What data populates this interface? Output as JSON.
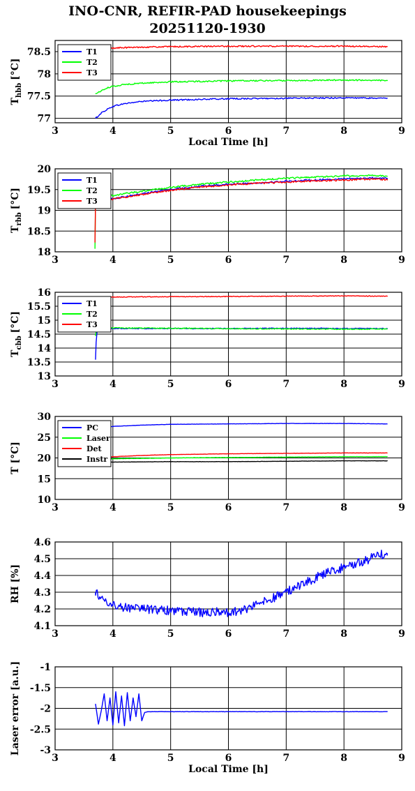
{
  "header": {
    "title_line1": "INO-CNR, REFIR-PAD housekeepings",
    "title_line2": "20251120-1930"
  },
  "chart_data": [
    {
      "type": "line",
      "ylabel": "T",
      "ylabel_sub": "hbb",
      "ylabel_unit": "[°C]",
      "xlabel": "Local Time [h]",
      "xlim": [
        3,
        9
      ],
      "ylim": [
        76.9,
        78.75
      ],
      "xticks": [
        3,
        4,
        5,
        6,
        7,
        8,
        9
      ],
      "yticks": [
        77,
        77.5,
        78,
        78.5
      ],
      "ytick_labels": [
        "77",
        "77.5",
        "78",
        "78.5"
      ],
      "grid": true,
      "legend_position": "top-left",
      "series": [
        {
          "name": "T1",
          "color": "#0000ff",
          "noise": 0.015,
          "points": [
            [
              3.7,
              77.0
            ],
            [
              3.8,
              77.12
            ],
            [
              3.9,
              77.2
            ],
            [
              4.0,
              77.27
            ],
            [
              4.2,
              77.33
            ],
            [
              4.5,
              77.38
            ],
            [
              5.0,
              77.41
            ],
            [
              6.0,
              77.44
            ],
            [
              7.0,
              77.45
            ],
            [
              8.0,
              77.46
            ],
            [
              8.75,
              77.45
            ]
          ]
        },
        {
          "name": "T2",
          "color": "#00ff00",
          "noise": 0.015,
          "points": [
            [
              3.7,
              77.55
            ],
            [
              3.8,
              77.62
            ],
            [
              3.9,
              77.68
            ],
            [
              4.0,
              77.72
            ],
            [
              4.2,
              77.76
            ],
            [
              4.5,
              77.79
            ],
            [
              5.0,
              77.82
            ],
            [
              6.0,
              77.84
            ],
            [
              7.0,
              77.85
            ],
            [
              8.0,
              77.86
            ],
            [
              8.75,
              77.85
            ]
          ]
        },
        {
          "name": "T3",
          "color": "#ff0000",
          "noise": 0.015,
          "points": [
            [
              3.7,
              78.47
            ],
            [
              3.8,
              78.52
            ],
            [
              3.9,
              78.56
            ],
            [
              4.0,
              78.58
            ],
            [
              4.5,
              78.6
            ],
            [
              5.0,
              78.61
            ],
            [
              6.0,
              78.62
            ],
            [
              7.0,
              78.62
            ],
            [
              8.0,
              78.62
            ],
            [
              8.75,
              78.61
            ]
          ]
        }
      ]
    },
    {
      "type": "line",
      "ylabel": "T",
      "ylabel_sub": "rbb",
      "ylabel_unit": "[°C]",
      "xlabel": "",
      "xlim": [
        3,
        9
      ],
      "ylim": [
        18,
        20
      ],
      "xticks": [
        3,
        4,
        5,
        6,
        7,
        8,
        9
      ],
      "yticks": [
        18,
        18.5,
        19,
        19.5,
        20
      ],
      "ytick_labels": [
        "18",
        "18.5",
        "19",
        "19.5",
        "20"
      ],
      "grid": true,
      "legend_position": "top-left",
      "series": [
        {
          "name": "T1",
          "color": "#0000ff",
          "noise": 0.02,
          "points": [
            [
              3.7,
              19.2
            ],
            [
              3.72,
              19.22
            ],
            [
              4.0,
              19.28
            ],
            [
              4.5,
              19.4
            ],
            [
              5.0,
              19.5
            ],
            [
              5.5,
              19.58
            ],
            [
              6.0,
              19.63
            ],
            [
              6.5,
              19.66
            ],
            [
              7.0,
              19.7
            ],
            [
              7.5,
              19.73
            ],
            [
              8.0,
              19.76
            ],
            [
              8.5,
              19.78
            ],
            [
              8.75,
              19.77
            ]
          ]
        },
        {
          "name": "T2",
          "color": "#00ff00",
          "noise": 0.02,
          "points": [
            [
              3.69,
              18.1
            ],
            [
              3.7,
              19.3
            ],
            [
              3.73,
              19.33
            ],
            [
              4.0,
              19.36
            ],
            [
              4.5,
              19.46
            ],
            [
              5.0,
              19.55
            ],
            [
              5.5,
              19.63
            ],
            [
              6.0,
              19.68
            ],
            [
              6.5,
              19.73
            ],
            [
              7.0,
              19.77
            ],
            [
              7.5,
              19.8
            ],
            [
              8.0,
              19.83
            ],
            [
              8.5,
              19.84
            ],
            [
              8.75,
              19.82
            ]
          ]
        },
        {
          "name": "T3",
          "color": "#ff0000",
          "noise": 0.02,
          "points": [
            [
              3.69,
              18.25
            ],
            [
              3.7,
              19.2
            ],
            [
              3.73,
              19.22
            ],
            [
              4.0,
              19.27
            ],
            [
              4.5,
              19.38
            ],
            [
              5.0,
              19.48
            ],
            [
              5.5,
              19.56
            ],
            [
              6.0,
              19.61
            ],
            [
              6.5,
              19.65
            ],
            [
              7.0,
              19.68
            ],
            [
              7.5,
              19.71
            ],
            [
              8.0,
              19.73
            ],
            [
              8.5,
              19.75
            ],
            [
              8.75,
              19.74
            ]
          ]
        }
      ]
    },
    {
      "type": "line",
      "ylabel": "T",
      "ylabel_sub": "cbb",
      "ylabel_unit": "[°C]",
      "xlabel": "",
      "xlim": [
        3,
        9
      ],
      "ylim": [
        13,
        16
      ],
      "xticks": [
        3,
        4,
        5,
        6,
        7,
        8,
        9
      ],
      "yticks": [
        13,
        13.5,
        14,
        14.5,
        15,
        15.5,
        16
      ],
      "ytick_labels": [
        "13",
        "13.5",
        "14",
        "14.5",
        "15",
        "15.5",
        "16"
      ],
      "grid": true,
      "legend_position": "top-left",
      "series": [
        {
          "name": "T1",
          "color": "#0000ff",
          "noise": 0.015,
          "points": [
            [
              3.7,
              13.6
            ],
            [
              3.71,
              14.2
            ],
            [
              3.73,
              14.68
            ],
            [
              4.0,
              14.7
            ],
            [
              5.0,
              14.7
            ],
            [
              6.0,
              14.7
            ],
            [
              7.0,
              14.71
            ],
            [
              8.0,
              14.7
            ],
            [
              8.75,
              14.7
            ]
          ]
        },
        {
          "name": "T2",
          "color": "#00ff00",
          "noise": 0.018,
          "points": [
            [
              3.7,
              14.45
            ],
            [
              3.72,
              14.7
            ],
            [
              4.0,
              14.72
            ],
            [
              5.0,
              14.71
            ],
            [
              6.0,
              14.7
            ],
            [
              7.0,
              14.69
            ],
            [
              8.0,
              14.68
            ],
            [
              8.75,
              14.68
            ]
          ]
        },
        {
          "name": "T3",
          "color": "#ff0000",
          "noise": 0.012,
          "points": [
            [
              3.7,
              15.83
            ],
            [
              4.0,
              15.83
            ],
            [
              5.0,
              15.84
            ],
            [
              6.0,
              15.85
            ],
            [
              7.0,
              15.86
            ],
            [
              8.0,
              15.87
            ],
            [
              8.75,
              15.86
            ]
          ]
        }
      ]
    },
    {
      "type": "line",
      "ylabel": "T [°C]",
      "ylabel_sub": "",
      "ylabel_unit": "",
      "xlabel": "",
      "xlim": [
        3,
        9
      ],
      "ylim": [
        10,
        30
      ],
      "xticks": [
        3,
        4,
        5,
        6,
        7,
        8,
        9
      ],
      "yticks": [
        10,
        15,
        20,
        25,
        30
      ],
      "ytick_labels": [
        "10",
        "15",
        "20",
        "25",
        "30"
      ],
      "grid": true,
      "legend_position": "top-left",
      "series": [
        {
          "name": "PC",
          "color": "#0000ff",
          "noise": 0.03,
          "points": [
            [
              3.7,
              26.8
            ],
            [
              3.8,
              27.2
            ],
            [
              4.0,
              27.6
            ],
            [
              4.5,
              27.9
            ],
            [
              5.0,
              28.1
            ],
            [
              6.0,
              28.2
            ],
            [
              7.0,
              28.3
            ],
            [
              8.0,
              28.3
            ],
            [
              8.75,
              28.2
            ]
          ]
        },
        {
          "name": "Laser",
          "color": "#00ff00",
          "noise": 0.03,
          "points": [
            [
              3.7,
              19.6
            ],
            [
              4.0,
              19.8
            ],
            [
              5.0,
              20.0
            ],
            [
              6.0,
              20.1
            ],
            [
              7.0,
              20.2
            ],
            [
              8.0,
              20.3
            ],
            [
              8.75,
              20.3
            ]
          ]
        },
        {
          "name": "Det",
          "color": "#ff0000",
          "noise": 0.03,
          "points": [
            [
              3.7,
              20.0
            ],
            [
              4.0,
              20.3
            ],
            [
              4.5,
              20.6
            ],
            [
              5.0,
              20.8
            ],
            [
              6.0,
              21.0
            ],
            [
              7.0,
              21.1
            ],
            [
              8.0,
              21.2
            ],
            [
              8.75,
              21.2
            ]
          ]
        },
        {
          "name": "Instr",
          "color": "#000000",
          "noise": 0.03,
          "points": [
            [
              3.7,
              19.0
            ],
            [
              4.0,
              19.0
            ],
            [
              5.0,
              19.1
            ],
            [
              6.0,
              19.1
            ],
            [
              7.0,
              19.2
            ],
            [
              8.0,
              19.3
            ],
            [
              8.75,
              19.3
            ]
          ]
        }
      ]
    },
    {
      "type": "line",
      "ylabel": "RH [%]",
      "ylabel_sub": "",
      "ylabel_unit": "",
      "xlabel": "",
      "xlim": [
        3,
        9
      ],
      "ylim": [
        4.1,
        4.6
      ],
      "xticks": [
        3,
        4,
        5,
        6,
        7,
        8,
        9
      ],
      "yticks": [
        4.1,
        4.2,
        4.3,
        4.4,
        4.5,
        4.6
      ],
      "ytick_labels": [
        "4.1",
        "4.2",
        "4.3",
        "4.4",
        "4.5",
        "4.6"
      ],
      "grid": true,
      "legend_position": "none",
      "series": [
        {
          "name": "",
          "color": "#0000ff",
          "noise": 0.028,
          "points": [
            [
              3.7,
              4.3
            ],
            [
              3.8,
              4.27
            ],
            [
              4.0,
              4.22
            ],
            [
              4.5,
              4.2
            ],
            [
              5.0,
              4.19
            ],
            [
              5.5,
              4.18
            ],
            [
              6.0,
              4.18
            ],
            [
              6.3,
              4.2
            ],
            [
              6.6,
              4.24
            ],
            [
              7.0,
              4.3
            ],
            [
              7.3,
              4.35
            ],
            [
              7.6,
              4.4
            ],
            [
              8.0,
              4.45
            ],
            [
              8.3,
              4.48
            ],
            [
              8.6,
              4.52
            ],
            [
              8.75,
              4.53
            ]
          ]
        }
      ]
    },
    {
      "type": "line",
      "ylabel": "Laser error [a.u.]",
      "ylabel_sub": "",
      "ylabel_unit": "",
      "xlabel": "Local Time [h]",
      "xlim": [
        3,
        9
      ],
      "ylim": [
        -3,
        -1
      ],
      "xticks": [
        3,
        4,
        5,
        6,
        7,
        8,
        9
      ],
      "yticks": [
        -3,
        -2.5,
        -2,
        -1.5,
        -1
      ],
      "ytick_labels": [
        "-3",
        "-2.5",
        "-2",
        "-1.5",
        "-1"
      ],
      "grid": true,
      "legend_position": "none",
      "series": [
        {
          "name": "",
          "color": "#0000ff",
          "noise": 0.004,
          "points": [
            [
              3.7,
              -1.9
            ],
            [
              3.75,
              -2.38
            ],
            [
              3.8,
              -2.05
            ],
            [
              3.85,
              -1.65
            ],
            [
              3.9,
              -2.3
            ],
            [
              3.95,
              -1.75
            ],
            [
              4.0,
              -2.4
            ],
            [
              4.05,
              -1.6
            ],
            [
              4.1,
              -2.35
            ],
            [
              4.15,
              -1.7
            ],
            [
              4.2,
              -2.42
            ],
            [
              4.25,
              -1.62
            ],
            [
              4.3,
              -2.3
            ],
            [
              4.35,
              -1.75
            ],
            [
              4.4,
              -2.2
            ],
            [
              4.45,
              -1.65
            ],
            [
              4.5,
              -2.3
            ],
            [
              4.55,
              -2.1
            ],
            [
              4.6,
              -2.08
            ],
            [
              5.0,
              -2.08
            ],
            [
              6.0,
              -2.08
            ],
            [
              7.0,
              -2.08
            ],
            [
              8.0,
              -2.08
            ],
            [
              8.75,
              -2.08
            ]
          ]
        }
      ]
    }
  ]
}
